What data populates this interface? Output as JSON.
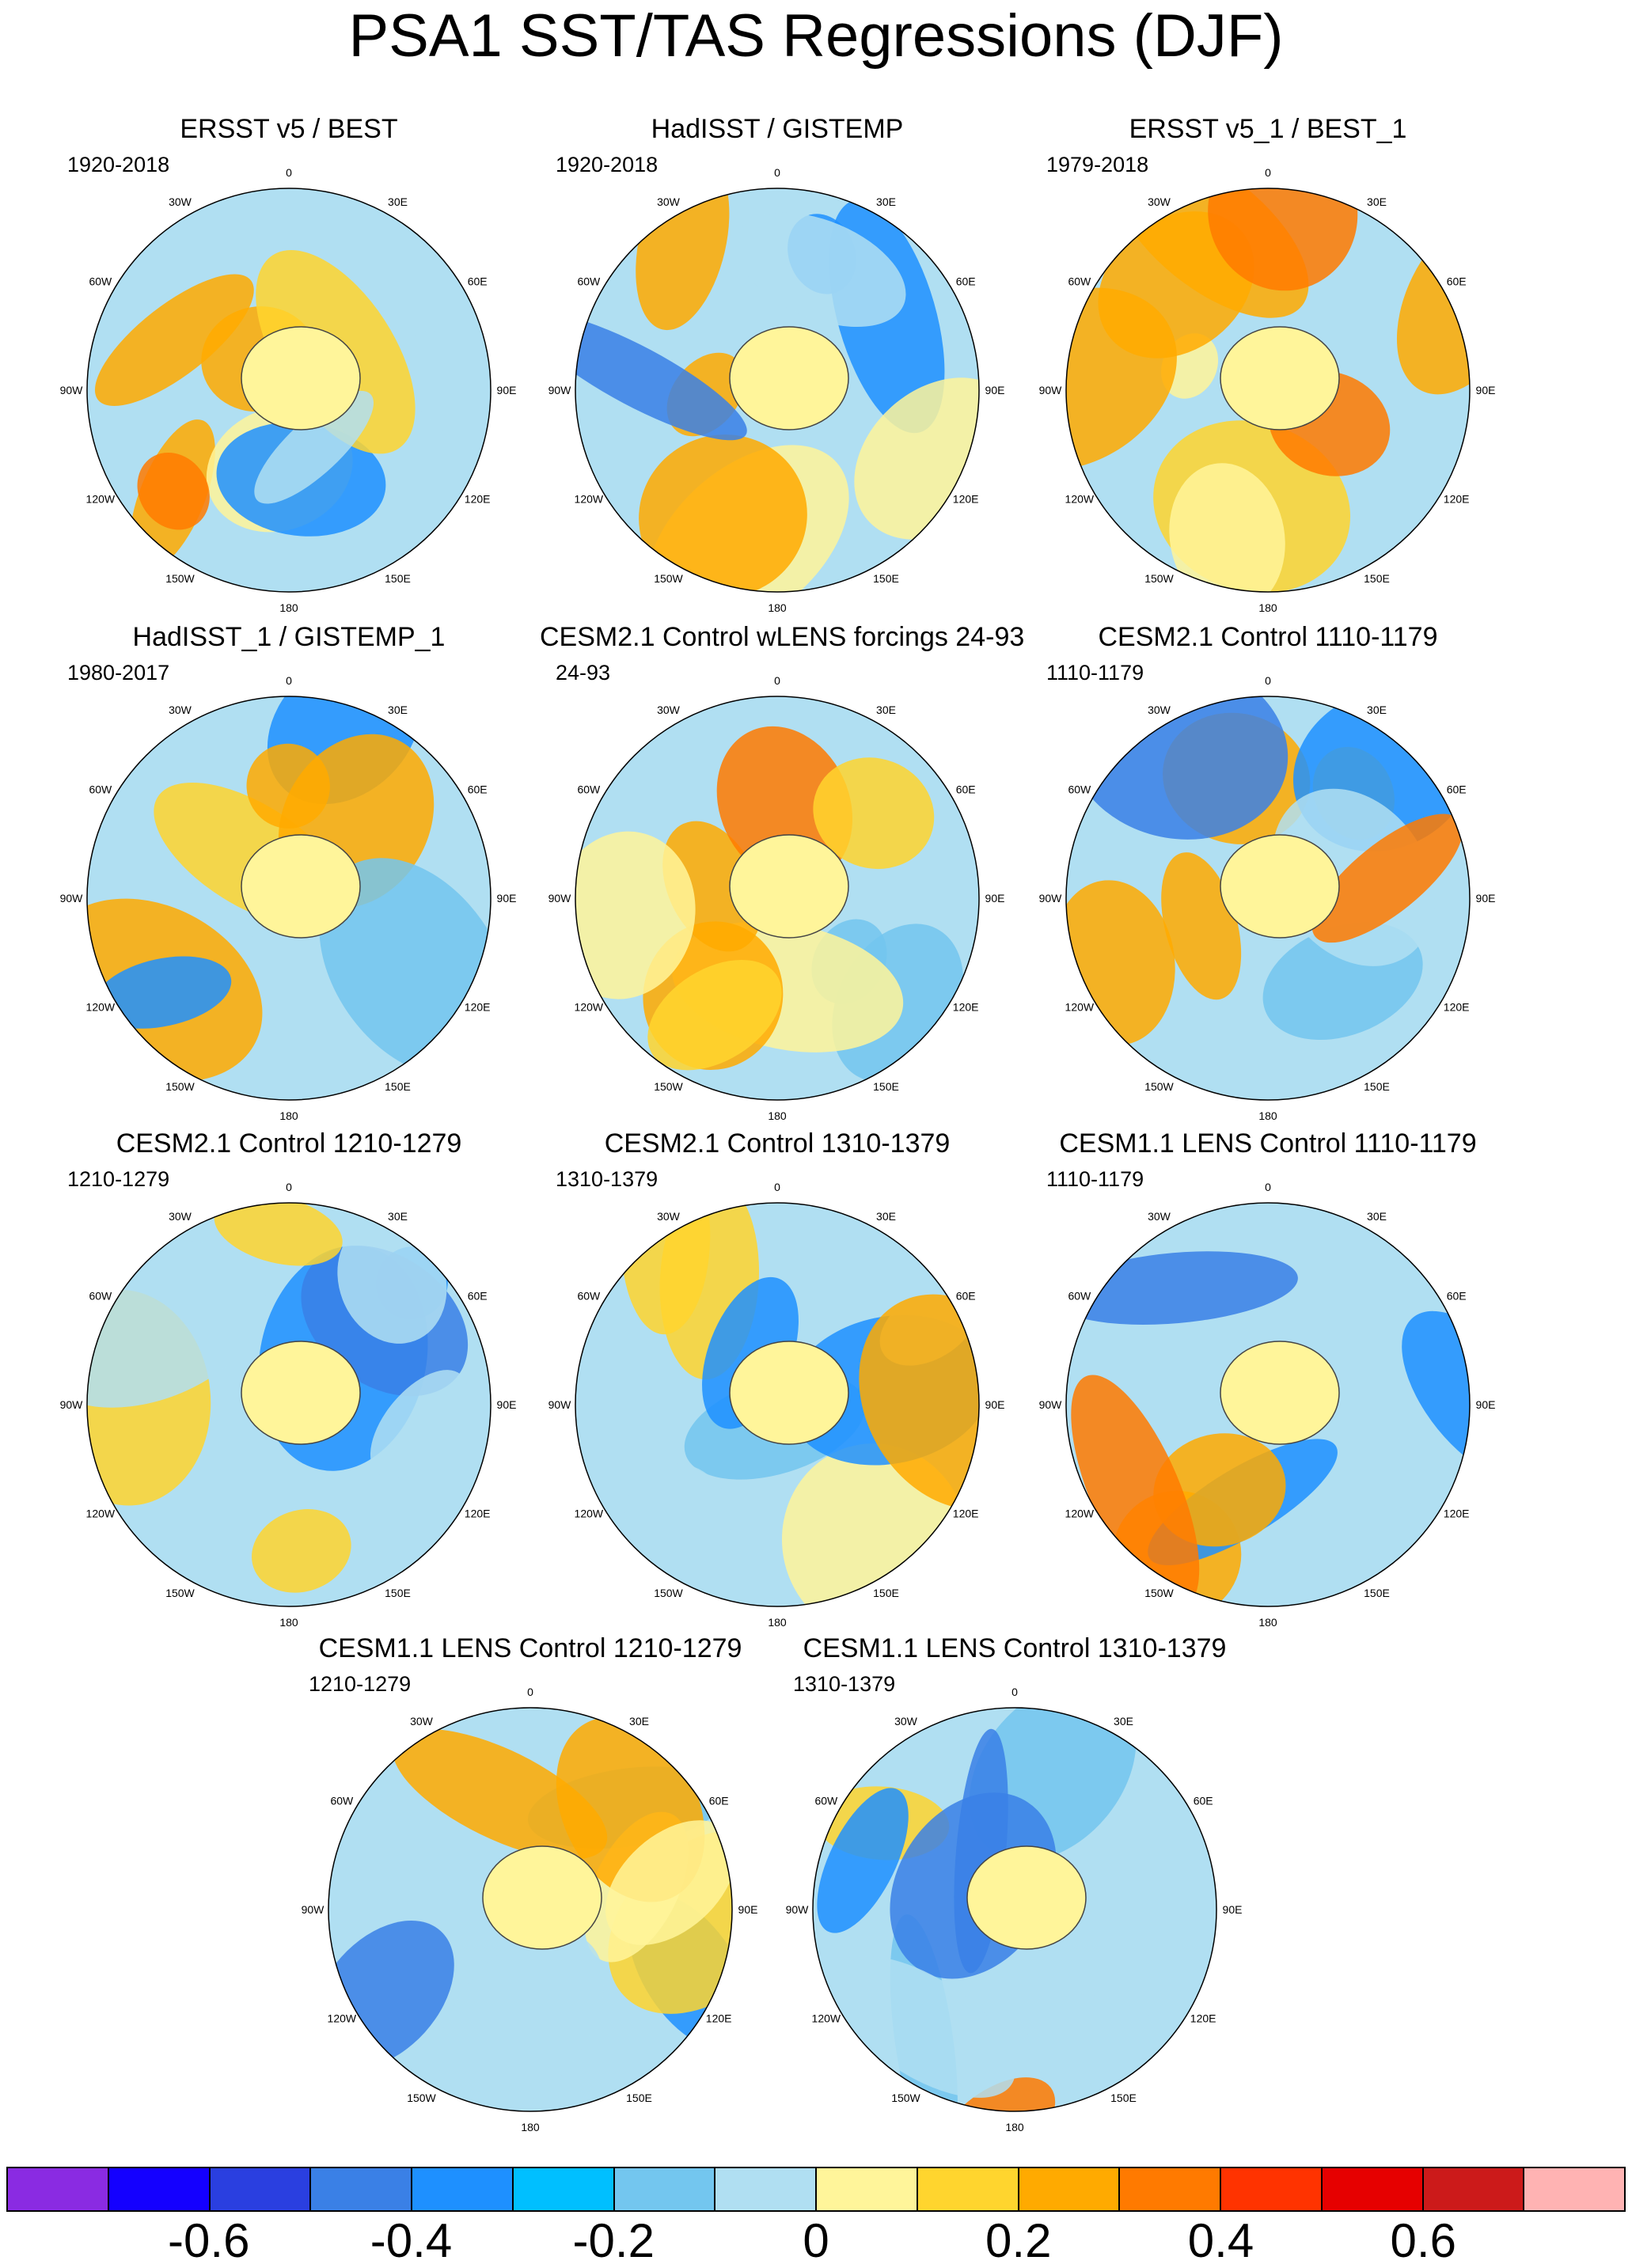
{
  "title": "PSA1 SST/TAS Regressions (DJF)",
  "longitude_labels": [
    "0",
    "30E",
    "60E",
    "90E",
    "120E",
    "150E",
    "180",
    "150W",
    "120W",
    "90W",
    "60W",
    "30W"
  ],
  "panels": [
    {
      "title": "ERSST v5 / BEST",
      "period": "1920-2018"
    },
    {
      "title": "HadISST / GISTEMP",
      "period": "1920-2018"
    },
    {
      "title": "ERSST v5_1 / BEST_1",
      "period": "1979-2018"
    },
    {
      "title": "HadISST_1 / GISTEMP_1",
      "period": "1980-2017"
    },
    {
      "title": "CESM2.1 Control wLENS forcings 24-93",
      "period": "24-93"
    },
    {
      "title": "CESM2.1 Control 1110-1179",
      "period": "1110-1179"
    },
    {
      "title": "CESM2.1 Control 1210-1279",
      "period": "1210-1279"
    },
    {
      "title": "CESM2.1 Control 1310-1379",
      "period": "1310-1379"
    },
    {
      "title": "CESM1.1 LENS Control 1110-1179",
      "period": "1110-1179"
    },
    {
      "title": "CESM1.1 LENS Control 1210-1279",
      "period": "1210-1279"
    },
    {
      "title": "CESM1.1 LENS Control 1310-1379",
      "period": "1310-1379"
    }
  ],
  "colorbar": {
    "colors": [
      "#8a2be2",
      "#1400ff",
      "#2a3fe0",
      "#3a80e6",
      "#1e90ff",
      "#00bfff",
      "#73c6ef",
      "#b0dff2",
      "#fff59a",
      "#ffd52e",
      "#ffaa00",
      "#ff7a00",
      "#ff3300",
      "#e60000",
      "#cc1a1a",
      "#ffb3b3"
    ],
    "labels": [
      "-0.6",
      "-0.4",
      "-0.2",
      "0",
      "0.2",
      "0.4",
      "0.6"
    ]
  }
}
